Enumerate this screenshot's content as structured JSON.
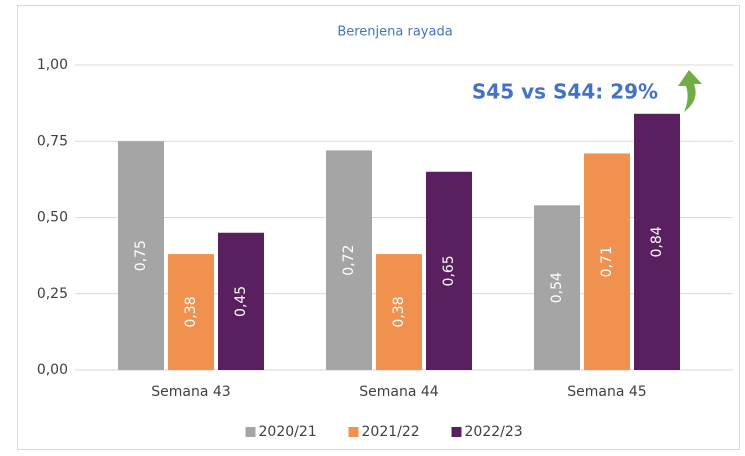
{
  "chart_data": {
    "type": "bar",
    "title": "Berenjena rayada",
    "annotation": "S45 vs S44: 29%",
    "categories": [
      "Semana 43",
      "Semana 44",
      "Semana 45"
    ],
    "series": [
      {
        "name": "2020/21",
        "color": "#a5a5a5",
        "values": [
          0.75,
          0.72,
          0.54
        ],
        "value_labels": [
          "0,75",
          "0,72",
          "0,54"
        ]
      },
      {
        "name": "2021/22",
        "color": "#f0914f",
        "values": [
          0.38,
          0.38,
          0.71
        ],
        "value_labels": [
          "0,38",
          "0,38",
          "0,71"
        ]
      },
      {
        "name": "2022/23",
        "color": "#5a1f5e",
        "values": [
          0.45,
          0.65,
          0.84
        ],
        "value_labels": [
          "0,45",
          "0,65",
          "0,84"
        ]
      }
    ],
    "ylim": [
      0,
      1
    ],
    "yticks": [
      {
        "value": 0,
        "label": "0,00"
      },
      {
        "value": 0.25,
        "label": "0,25"
      },
      {
        "value": 0.5,
        "label": "0,50"
      },
      {
        "value": 0.75,
        "label": "0,75"
      },
      {
        "value": 1,
        "label": "1,00"
      }
    ],
    "grid": true,
    "legend": "bottom"
  }
}
